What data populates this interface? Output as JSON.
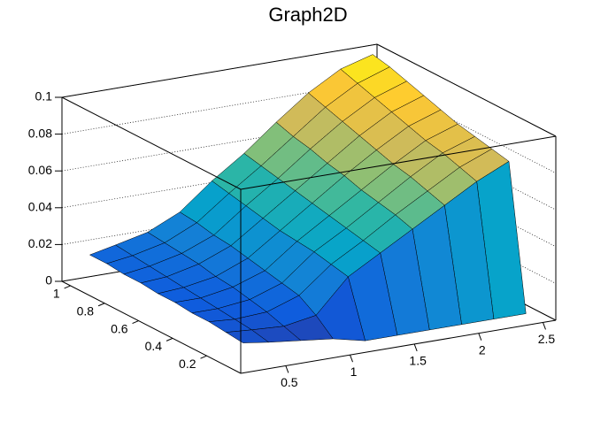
{
  "chart_data": {
    "type": "surface",
    "title": "Graph2D",
    "x": [
      0.3,
      0.5,
      0.75,
      1,
      1.25,
      1.5,
      1.75,
      2,
      2.25,
      2.5
    ],
    "y": [
      0.1,
      0.2,
      0.3,
      0.4,
      0.5,
      0.6,
      0.7,
      0.8,
      0.9,
      1.0
    ],
    "z": [
      [
        0.01,
        0.008,
        0.006,
        0.004,
        0,
        0,
        0,
        0,
        0,
        0
      ],
      [
        0.011,
        0.01,
        0.009,
        0.012,
        0.03,
        0.04,
        0.05,
        0.06,
        0.07,
        0.078
      ],
      [
        0.012,
        0.011,
        0.012,
        0.018,
        0.032,
        0.042,
        0.053,
        0.063,
        0.073,
        0.08
      ],
      [
        0.012,
        0.012,
        0.014,
        0.02,
        0.034,
        0.044,
        0.055,
        0.066,
        0.076,
        0.082
      ],
      [
        0.013,
        0.013,
        0.016,
        0.022,
        0.035,
        0.046,
        0.057,
        0.068,
        0.078,
        0.084
      ],
      [
        0.013,
        0.014,
        0.017,
        0.024,
        0.036,
        0.048,
        0.06,
        0.071,
        0.081,
        0.087
      ],
      [
        0.014,
        0.015,
        0.019,
        0.026,
        0.038,
        0.05,
        0.062,
        0.074,
        0.084,
        0.09
      ],
      [
        0.014,
        0.016,
        0.02,
        0.027,
        0.04,
        0.052,
        0.065,
        0.077,
        0.087,
        0.093
      ],
      [
        0.015,
        0.017,
        0.021,
        0.029,
        0.042,
        0.054,
        0.067,
        0.08,
        0.09,
        0.096
      ],
      [
        0.015,
        0.018,
        0.022,
        0.03,
        0.044,
        0.056,
        0.07,
        0.083,
        0.093,
        0.098
      ]
    ],
    "xlim": [
      0.15,
      2.6
    ],
    "ylim": [
      0,
      1.05
    ],
    "zlim": [
      0,
      0.1
    ],
    "xticks": [
      0.5,
      1,
      1.5,
      2,
      2.5
    ],
    "yticks": [
      0.2,
      0.4,
      0.6,
      0.8,
      1
    ],
    "zticks": [
      0,
      0.02,
      0.04,
      0.06,
      0.08,
      0.1
    ],
    "grid": true,
    "palette": [
      "#352a87",
      "#0f5cdd",
      "#1481d6",
      "#06a4ca",
      "#2eb7a4",
      "#87bf77",
      "#d1bb59",
      "#fec832",
      "#f9fb0e"
    ]
  }
}
